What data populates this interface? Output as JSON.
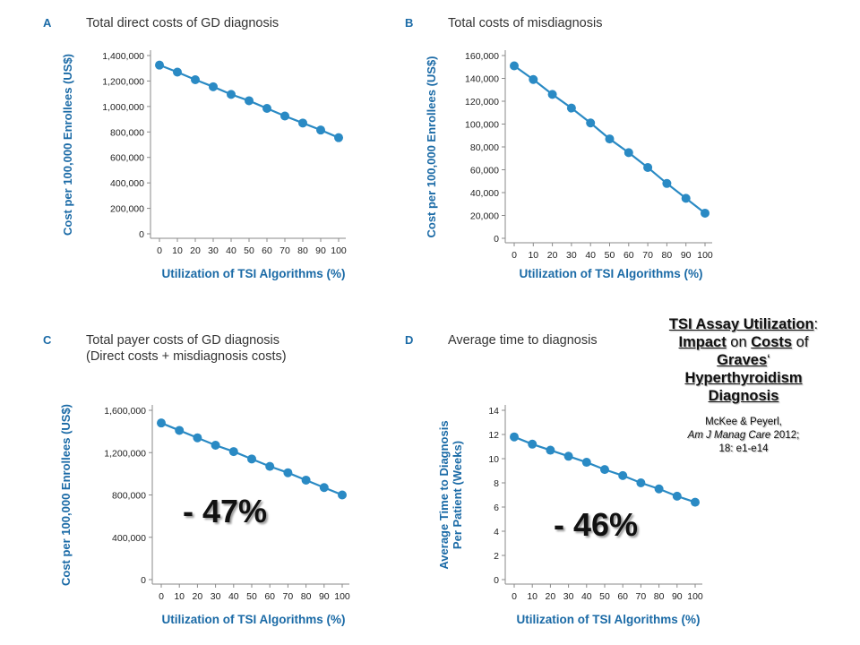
{
  "chart_data": [
    {
      "type": "line",
      "panel": "A",
      "title": "Total direct costs of GD diagnosis",
      "xlabel": "Utilization of TSI Algorithms (%)",
      "ylabel": "Cost per 100,000 Enrollees (US$)",
      "xticks": [
        0,
        10,
        20,
        30,
        40,
        50,
        60,
        70,
        80,
        90,
        100
      ],
      "yticks": [
        0,
        200000,
        400000,
        600000,
        800000,
        1000000,
        1200000,
        1400000
      ],
      "ytick_labels": [
        "0",
        "200,000",
        "400,000",
        "600,000",
        "800,000",
        "1,000,000",
        "1,200,000",
        "1,400,000"
      ],
      "xlim": [
        0,
        100
      ],
      "ylim": [
        0,
        1400000
      ],
      "x": [
        0,
        10,
        20,
        30,
        40,
        50,
        60,
        70,
        80,
        90,
        100
      ],
      "y": [
        1325000,
        1270000,
        1210000,
        1155000,
        1095000,
        1045000,
        985000,
        925000,
        870000,
        815000,
        755000
      ],
      "color": "#2a8ac4"
    },
    {
      "type": "line",
      "panel": "B",
      "title": "Total costs of misdiagnosis",
      "xlabel": "Utilization of TSI Algorithms (%)",
      "ylabel": "Cost per 100,000 Enrollees (US$)",
      "xticks": [
        0,
        10,
        20,
        30,
        40,
        50,
        60,
        70,
        80,
        90,
        100
      ],
      "yticks": [
        0,
        20000,
        40000,
        60000,
        80000,
        100000,
        120000,
        140000,
        160000
      ],
      "ytick_labels": [
        "0",
        "20,000",
        "40,000",
        "60,000",
        "80,000",
        "100,000",
        "120,000",
        "140,000",
        "160,000"
      ],
      "xlim": [
        0,
        100
      ],
      "ylim": [
        0,
        160000
      ],
      "x": [
        0,
        10,
        20,
        30,
        40,
        50,
        60,
        70,
        80,
        90,
        100
      ],
      "y": [
        151000,
        139000,
        126000,
        114000,
        101000,
        87000,
        75000,
        62000,
        48000,
        35000,
        22000
      ],
      "color": "#2a8ac4"
    },
    {
      "type": "line",
      "panel": "C",
      "title": "Total payer costs of GD diagnosis",
      "subtitle": "(Direct costs + misdiagnosis costs)",
      "xlabel": "Utilization of TSI Algorithms (%)",
      "ylabel": "Cost per 100,000 Enrollees (US$)",
      "xticks": [
        0,
        10,
        20,
        30,
        40,
        50,
        60,
        70,
        80,
        90,
        100
      ],
      "yticks": [
        0,
        400000,
        800000,
        1200000,
        1600000
      ],
      "ytick_labels": [
        "0",
        "400,000",
        "800,000",
        "1,200,000",
        "1,600,000"
      ],
      "xlim": [
        0,
        100
      ],
      "ylim": [
        0,
        1600000
      ],
      "x": [
        0,
        10,
        20,
        30,
        40,
        50,
        60,
        70,
        80,
        90,
        100
      ],
      "y": [
        1480000,
        1410000,
        1340000,
        1270000,
        1210000,
        1140000,
        1070000,
        1010000,
        940000,
        870000,
        800000
      ],
      "color": "#2a8ac4",
      "annotation": "- 47%"
    },
    {
      "type": "line",
      "panel": "D",
      "title": "Average time to diagnosis",
      "xlabel": "Utilization of TSI Algorithms (%)",
      "ylabel_lines": [
        "Average Time to Diagnosis",
        "Per Patient (Weeks)"
      ],
      "xticks": [
        0,
        10,
        20,
        30,
        40,
        50,
        60,
        70,
        80,
        90,
        100
      ],
      "yticks": [
        0,
        2,
        4,
        6,
        8,
        10,
        12,
        14
      ],
      "ytick_labels": [
        "0",
        "2",
        "4",
        "6",
        "8",
        "10",
        "12",
        "14"
      ],
      "xlim": [
        0,
        100
      ],
      "ylim": [
        0,
        14
      ],
      "x": [
        0,
        10,
        20,
        30,
        40,
        50,
        60,
        70,
        80,
        90,
        100
      ],
      "y": [
        11.8,
        11.2,
        10.7,
        10.2,
        9.7,
        9.1,
        8.6,
        8.0,
        7.5,
        6.9,
        6.4
      ],
      "color": "#2a8ac4",
      "annotation": "- 46%"
    }
  ],
  "side_title": {
    "w1": "TSI Assay Utilization",
    "p1": ":",
    "w2": "Impact",
    "p2": " on ",
    "w3": "Costs",
    "p3": " of",
    "w4": "Graves",
    "p4": "‘",
    "w5": "Hyperthyroidism",
    "w6": "Diagnosis"
  },
  "reference": {
    "authors": "McKee & Peyerl,",
    "journal": "Am J Manag Care",
    "year": " 2012;",
    "pages": "18: e1-e14"
  }
}
